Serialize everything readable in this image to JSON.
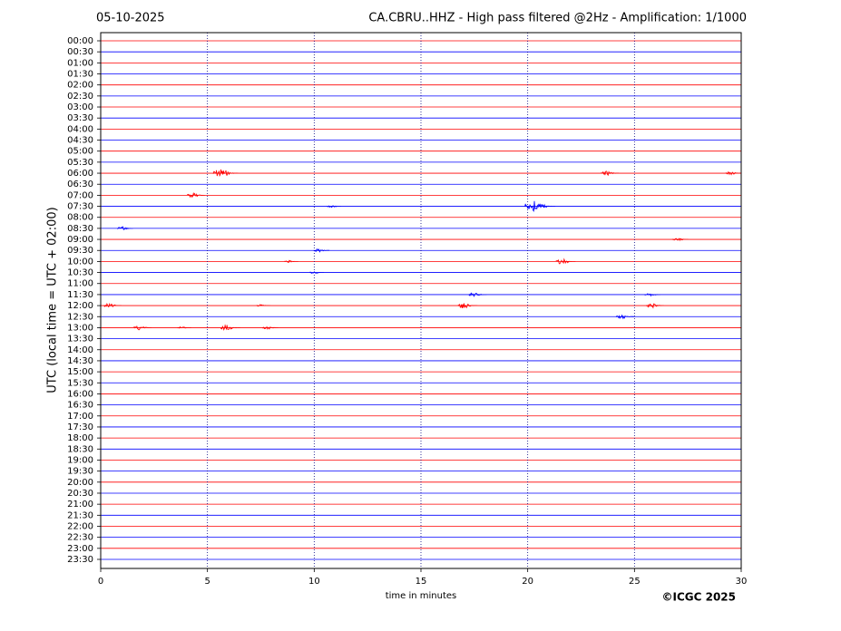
{
  "chart_data": {
    "type": "helicorder",
    "date": "05-10-2025",
    "title": "CA.CBRU..HHZ - High pass filtered @2Hz - Amplification: 1/1000",
    "ylabel": "UTC (local time = UTC + 02:00)",
    "xlabel": "time in minutes",
    "copyright": "©ICGC 2025",
    "xlim": [
      0,
      30
    ],
    "xticks": [
      0,
      5,
      10,
      15,
      20,
      25,
      30
    ],
    "grid": true,
    "row_colors": [
      "#ff0000",
      "#0000ff"
    ],
    "categories": [
      "00:00",
      "00:30",
      "01:00",
      "01:30",
      "02:00",
      "02:30",
      "03:00",
      "03:30",
      "04:00",
      "04:30",
      "05:00",
      "05:30",
      "06:00",
      "06:30",
      "07:00",
      "07:30",
      "08:00",
      "08:30",
      "09:00",
      "09:30",
      "10:00",
      "10:30",
      "11:00",
      "11:30",
      "12:00",
      "12:30",
      "13:00",
      "13:30",
      "14:00",
      "14:30",
      "15:00",
      "15:30",
      "16:00",
      "16:30",
      "17:00",
      "17:30",
      "18:00",
      "18:30",
      "19:00",
      "19:30",
      "20:00",
      "20:30",
      "21:00",
      "21:30",
      "22:00",
      "22:30",
      "23:00",
      "23:30"
    ],
    "events": [
      {
        "row": 12,
        "x": 5.6,
        "amplitude": 0.4
      },
      {
        "row": 12,
        "x": 23.7,
        "amplitude": 0.2
      },
      {
        "row": 12,
        "x": 29.5,
        "amplitude": 0.15
      },
      {
        "row": 14,
        "x": 4.3,
        "amplitude": 0.2
      },
      {
        "row": 15,
        "x": 20.3,
        "amplitude": 0.55
      },
      {
        "row": 15,
        "x": 10.8,
        "amplitude": 0.1
      },
      {
        "row": 17,
        "x": 1.0,
        "amplitude": 0.15
      },
      {
        "row": 18,
        "x": 27.0,
        "amplitude": 0.15
      },
      {
        "row": 19,
        "x": 10.2,
        "amplitude": 0.15
      },
      {
        "row": 20,
        "x": 21.6,
        "amplitude": 0.25
      },
      {
        "row": 20,
        "x": 8.8,
        "amplitude": 0.1
      },
      {
        "row": 21,
        "x": 10.0,
        "amplitude": 0.1
      },
      {
        "row": 23,
        "x": 17.5,
        "amplitude": 0.2
      },
      {
        "row": 23,
        "x": 25.7,
        "amplitude": 0.15
      },
      {
        "row": 24,
        "x": 0.4,
        "amplitude": 0.2
      },
      {
        "row": 24,
        "x": 17.0,
        "amplitude": 0.25
      },
      {
        "row": 24,
        "x": 25.8,
        "amplitude": 0.2
      },
      {
        "row": 24,
        "x": 7.5,
        "amplitude": 0.1
      },
      {
        "row": 25,
        "x": 24.4,
        "amplitude": 0.2
      },
      {
        "row": 26,
        "x": 1.8,
        "amplitude": 0.2
      },
      {
        "row": 26,
        "x": 5.9,
        "amplitude": 0.25
      },
      {
        "row": 26,
        "x": 7.8,
        "amplitude": 0.15
      },
      {
        "row": 26,
        "x": 3.8,
        "amplitude": 0.1
      }
    ]
  }
}
